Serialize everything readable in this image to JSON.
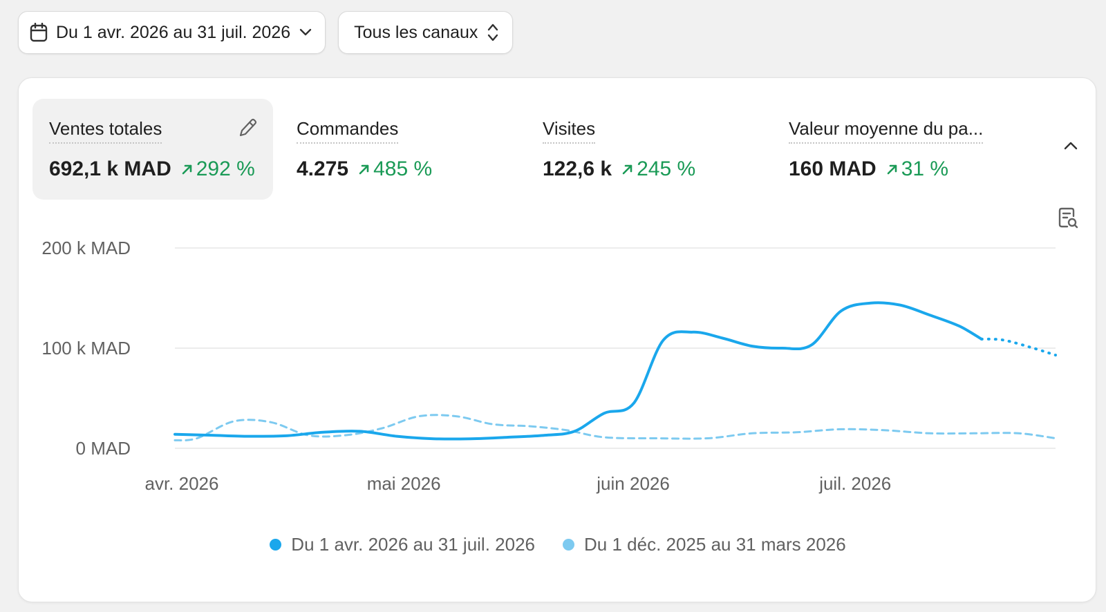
{
  "toolbar": {
    "date_range_label": "Du 1 avr. 2026 au 31 juil. 2026",
    "channel_label": "Tous les canaux"
  },
  "metrics": [
    {
      "label": "Ventes totales",
      "value": "692,1 k MAD",
      "delta": "292 %",
      "active": true
    },
    {
      "label": "Commandes",
      "value": "4.275",
      "delta": "485 %"
    },
    {
      "label": "Visites",
      "value": "122,6 k",
      "delta": "245 %"
    },
    {
      "label": "Valeur moyenne du pa...",
      "value": "160 MAD",
      "delta": "31 %"
    }
  ],
  "chart_data": {
    "type": "line",
    "y_ticks": [
      "200 k MAD",
      "100 k MAD",
      "0 MAD"
    ],
    "y_tick_values": [
      200000,
      100000,
      0
    ],
    "ylim": [
      0,
      200000
    ],
    "x_ticks": [
      "avr. 2026",
      "mai 2026",
      "juin 2026",
      "juil. 2026"
    ],
    "x_tick_days": [
      0,
      30,
      61,
      91
    ],
    "grid": true,
    "legend_position": "bottom-center",
    "colors": {
      "current": "#1aa7ec",
      "previous": "#7dcaf0",
      "positive": "#1a9a56"
    },
    "series": [
      {
        "name": "Du 1 avr. 2026 au 31 juil. 2026",
        "x": [
          0,
          5,
          10,
          15,
          20,
          25,
          30,
          35,
          40,
          45,
          50,
          54,
          58,
          62,
          66,
          70,
          74,
          78,
          82,
          86,
          90,
          94,
          98,
          102,
          106,
          109
        ],
        "y": [
          14000,
          13000,
          12000,
          12500,
          16000,
          17000,
          12000,
          9500,
          9500,
          11000,
          13000,
          17000,
          35000,
          45000,
          108000,
          116000,
          110000,
          102000,
          100000,
          103000,
          137000,
          145000,
          143000,
          133000,
          122000,
          109000
        ],
        "dashed_from_x": 109,
        "projection_x": [
          109,
          112,
          116,
          119
        ],
        "projection_y": [
          109000,
          108000,
          100000,
          93000
        ]
      },
      {
        "name": "Du 1 déc. 2025 au 31 mars 2026",
        "x": [
          0,
          3,
          8,
          13,
          18,
          23,
          28,
          33,
          38,
          43,
          48,
          53,
          58,
          65,
          72,
          78,
          84,
          90,
          96,
          102,
          108,
          114,
          119
        ],
        "y": [
          8000,
          10000,
          27000,
          26000,
          13000,
          13000,
          20000,
          32000,
          32000,
          24000,
          22000,
          18000,
          11000,
          10000,
          10000,
          15000,
          16000,
          19000,
          18000,
          15000,
          15000,
          15000,
          10000
        ],
        "style": "dashed"
      }
    ]
  }
}
